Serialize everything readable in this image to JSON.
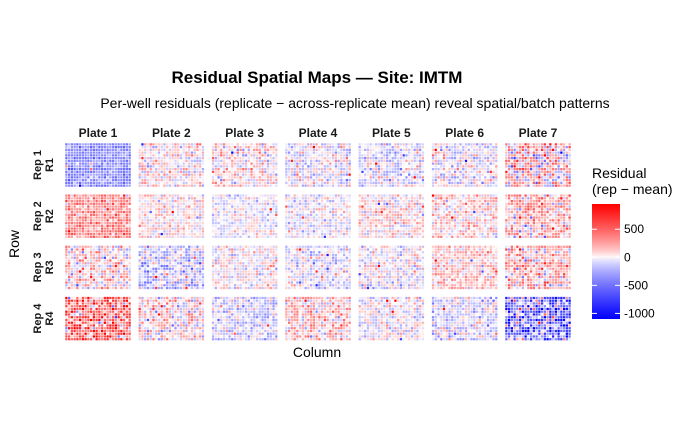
{
  "chart_data": {
    "type": "heatmap",
    "title": "Residual Spatial Maps — Site: IMTM",
    "subtitle": "Per-well residuals (replicate − across-replicate mean) reveal spatial/batch patterns",
    "xlabel": "Column",
    "ylabel": "Row",
    "facet_columns": [
      "Plate 1",
      "Plate 2",
      "Plate 3",
      "Plate 4",
      "Plate 5",
      "Plate 6",
      "Plate 7"
    ],
    "facet_rows": [
      {
        "rep": "Rep 1",
        "code": "R1"
      },
      {
        "rep": "Rep 2",
        "code": "R2"
      },
      {
        "rep": "Rep 3",
        "code": "R3"
      },
      {
        "rep": "Rep 4",
        "code": "R4"
      }
    ],
    "plate_layout": {
      "rows": 16,
      "columns": 24
    },
    "panel_mean_residual": [
      [
        -380,
        35,
        55,
        -40,
        -60,
        -45,
        130
      ],
      [
        330,
        55,
        -25,
        -35,
        55,
        70,
        140
      ],
      [
        95,
        -140,
        20,
        -60,
        -20,
        110,
        175
      ],
      [
        430,
        60,
        -95,
        130,
        -25,
        -95,
        -480
      ]
    ],
    "panel_spread": [
      [
        120,
        160,
        180,
        160,
        160,
        170,
        320
      ],
      [
        160,
        130,
        110,
        130,
        160,
        160,
        220
      ],
      [
        200,
        200,
        140,
        140,
        150,
        150,
        230
      ],
      [
        360,
        210,
        160,
        200,
        150,
        170,
        420
      ]
    ],
    "legend": {
      "title_lines": [
        "Residual",
        "(rep − mean)"
      ],
      "position": "right",
      "ticks": [
        500,
        0,
        -500,
        -1000
      ],
      "range": [
        -1100,
        950
      ],
      "colors": {
        "low": "#0000ff",
        "mid": "#ffffff",
        "high": "#ff0000"
      }
    },
    "grid": false
  }
}
